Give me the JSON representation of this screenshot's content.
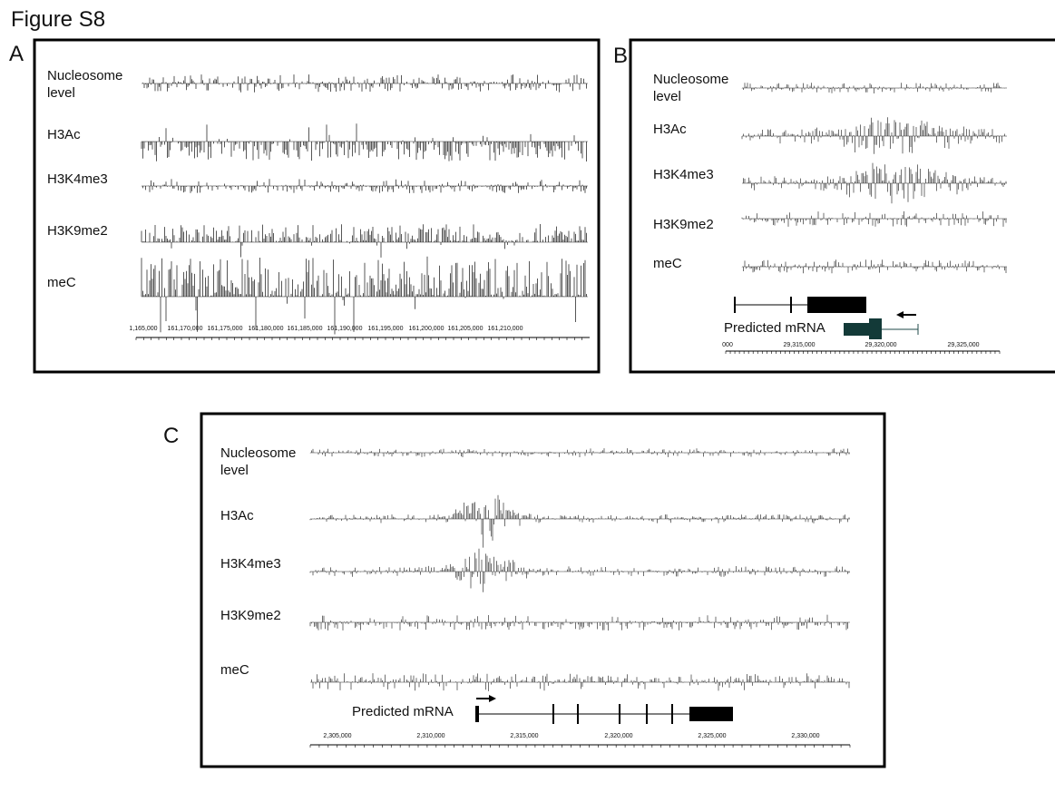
{
  "figure_title": "Figure S8",
  "panels": [
    {
      "label": "A",
      "tracks": [
        "Nucleosome level",
        "H3Ac",
        "H3K4me3",
        "H3K9me2",
        "meC"
      ],
      "axis_labels": [
        "1,165,000",
        "161,170,000",
        "161,175,000",
        "161,180,000",
        "161,185,000",
        "161,190,000",
        "161,195,000",
        "161,200,000",
        "161,205,000",
        "161,210,000"
      ]
    },
    {
      "label": "B",
      "tracks": [
        "Nucleosome level",
        "H3Ac",
        "H3K4me3",
        "H3K9me2",
        "meC"
      ],
      "gene_label": "Predicted mRNA",
      "axis_labels": [
        "000",
        "29,315,000",
        "29,320,000",
        "29,325,000"
      ]
    },
    {
      "label": "C",
      "tracks": [
        "Nucleosome level",
        "H3Ac",
        "H3K4me3",
        "H3K9me2",
        "meC"
      ],
      "gene_label": "Predicted mRNA",
      "axis_labels": [
        "2,305,000",
        "2,310,000",
        "2,315,000",
        "2,320,000",
        "2,325,000",
        "2,330,000"
      ]
    }
  ]
}
